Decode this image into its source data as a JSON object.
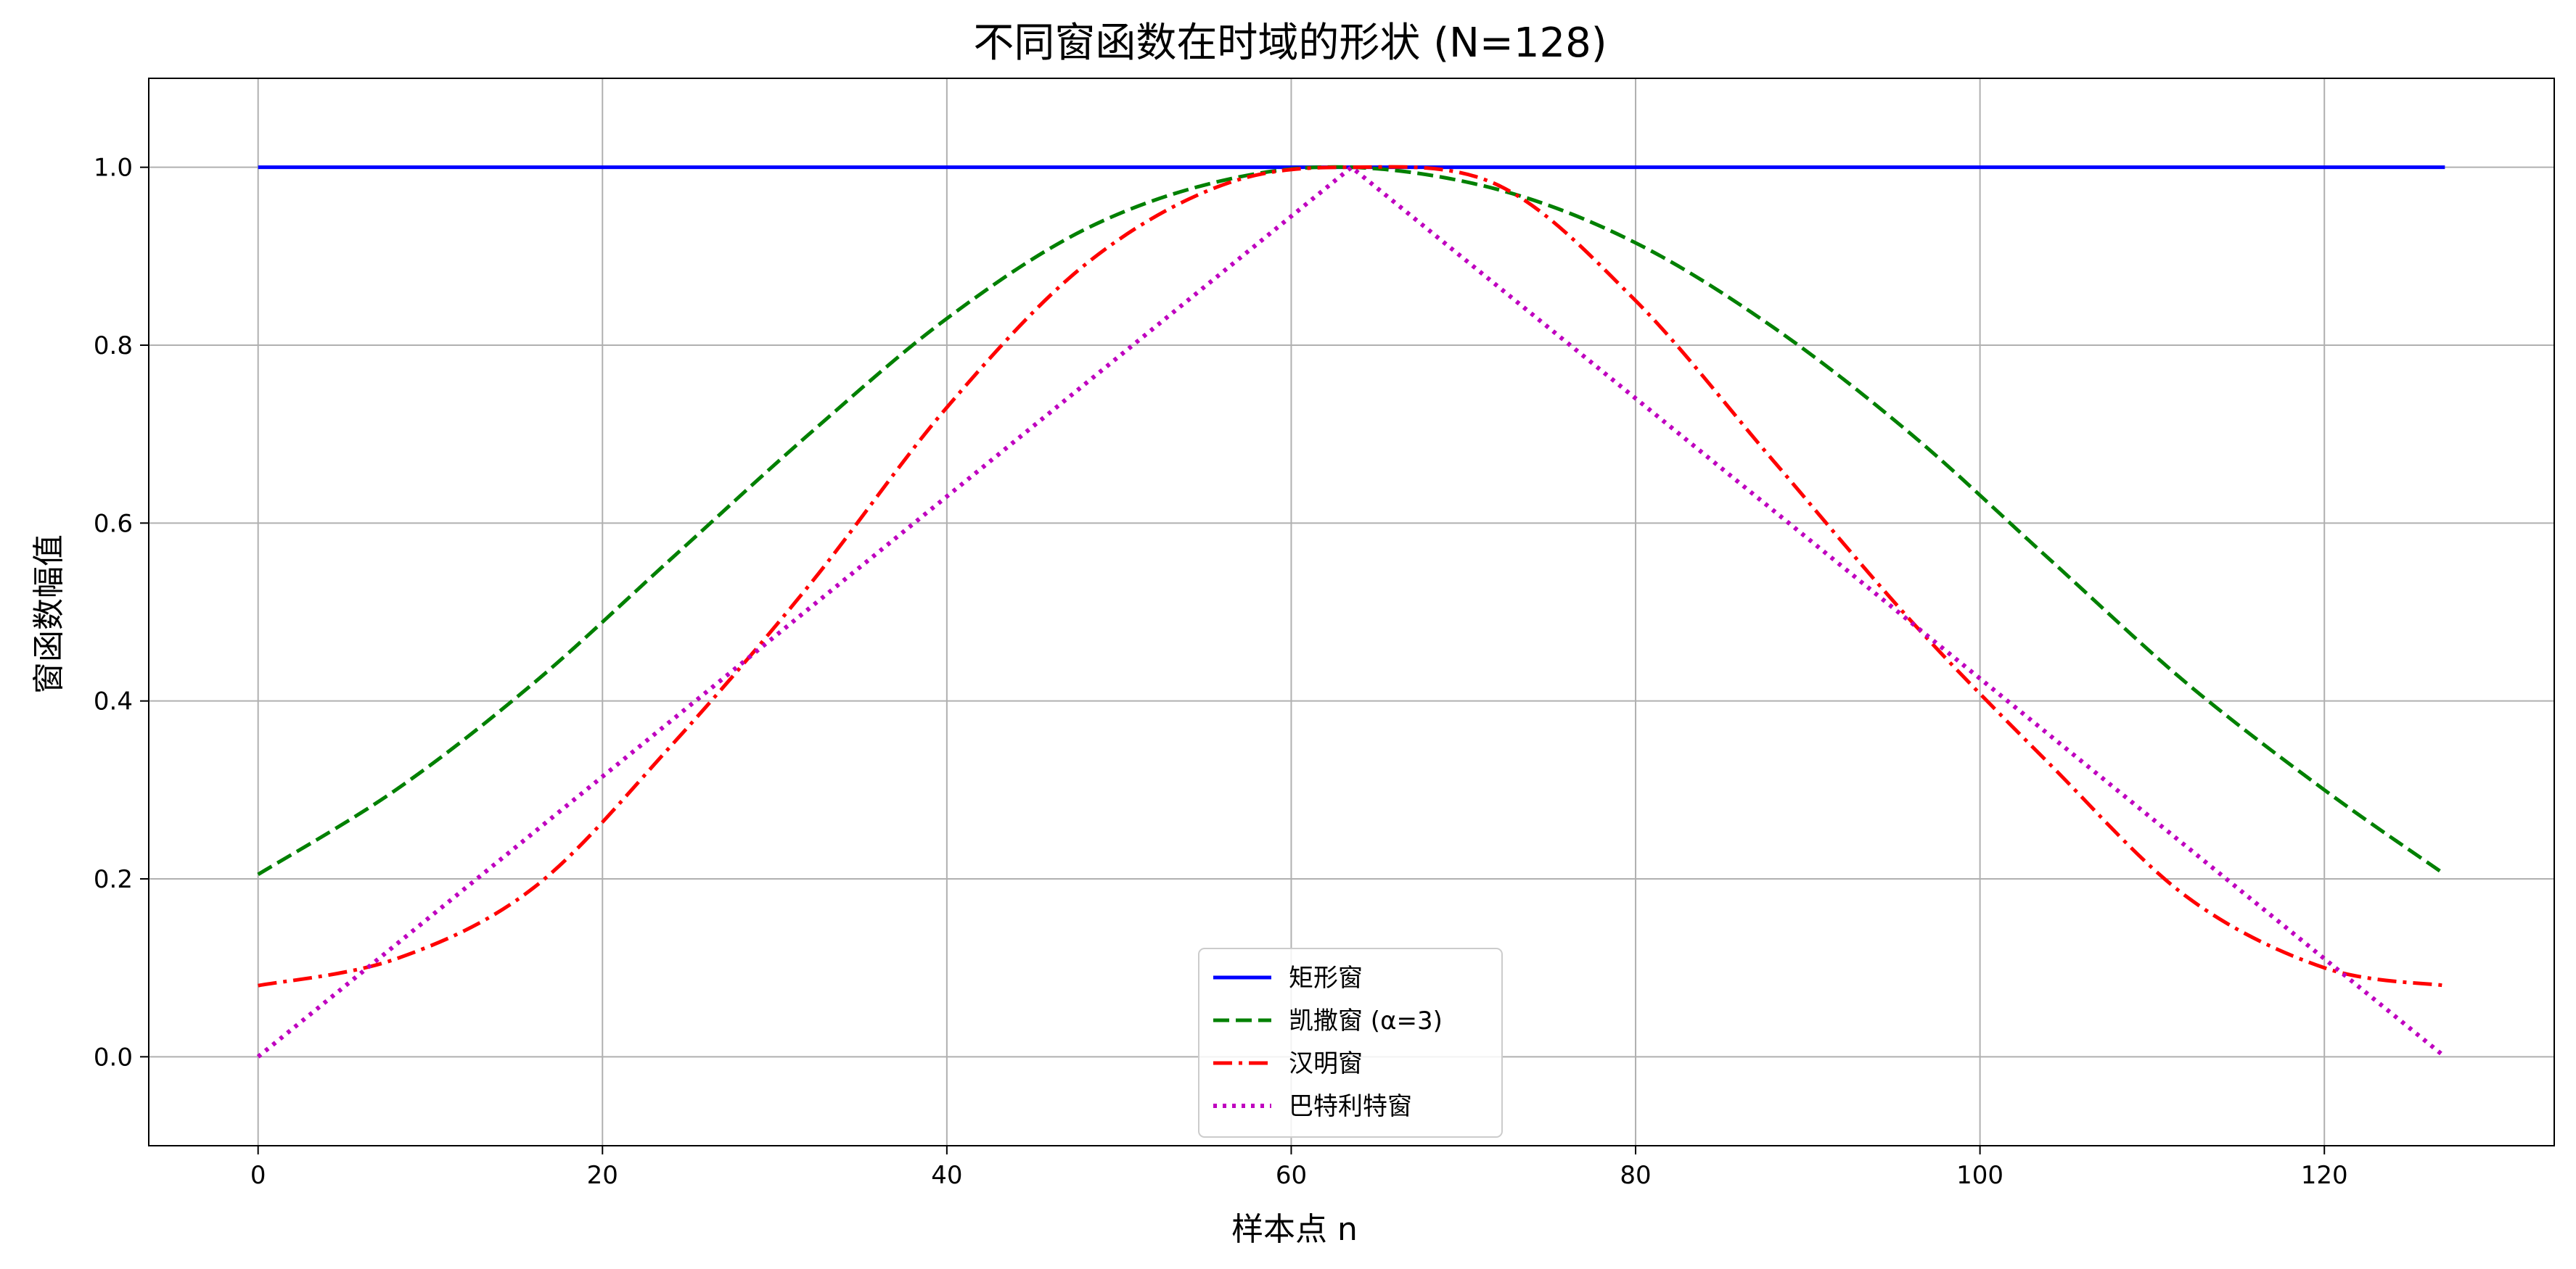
{
  "chart_data": {
    "type": "line",
    "title": "不同窗函数在时域的形状 (N=128)",
    "xlabel": "样本点 n",
    "ylabel": "窗函数幅值",
    "xlim": [
      -6.35,
      133.35
    ],
    "ylim": [
      -0.1,
      1.1
    ],
    "xticks": [
      0,
      20,
      40,
      60,
      80,
      100,
      120
    ],
    "yticks": [
      0.0,
      0.2,
      0.4,
      0.6,
      0.8,
      1.0
    ],
    "xtick_labels": [
      "0",
      "20",
      "40",
      "60",
      "80",
      "100",
      "120"
    ],
    "ytick_labels": [
      "0.0",
      "0.2",
      "0.4",
      "0.6",
      "0.8",
      "1.0"
    ],
    "grid": true,
    "legend_position": "lower-center",
    "series": [
      {
        "name": "矩形窗",
        "color": "#0000ff",
        "style": "solid",
        "x": [
          0,
          127
        ],
        "y": [
          1.0,
          1.0
        ]
      },
      {
        "name": "凯撒窗 (α=3)",
        "color": "#008000",
        "style": "dashed",
        "x": [
          0,
          8,
          16,
          24,
          32,
          40,
          48,
          56,
          63.5,
          72,
          80,
          88,
          96,
          104,
          112,
          120,
          127
        ],
        "y": [
          0.205,
          0.3,
          0.42,
          0.56,
          0.7,
          0.83,
          0.93,
          0.985,
          1.0,
          0.975,
          0.915,
          0.82,
          0.7,
          0.56,
          0.42,
          0.3,
          0.205
        ]
      },
      {
        "name": "汉明窗",
        "color": "#ff0000",
        "style": "dashdot",
        "x": [
          0,
          8,
          16,
          24,
          32,
          40,
          48,
          56,
          63.5,
          72,
          80,
          88,
          96,
          104,
          112,
          120,
          127
        ],
        "y": [
          0.08,
          0.11,
          0.19,
          0.35,
          0.53,
          0.73,
          0.89,
          0.98,
          1.0,
          0.98,
          0.85,
          0.67,
          0.49,
          0.33,
          0.18,
          0.1,
          0.08
        ]
      },
      {
        "name": "巴特利特窗",
        "color": "#bf00bf",
        "style": "dotted",
        "x": [
          0,
          63.5,
          127
        ],
        "y": [
          0.0,
          1.0,
          0.0
        ]
      }
    ]
  }
}
